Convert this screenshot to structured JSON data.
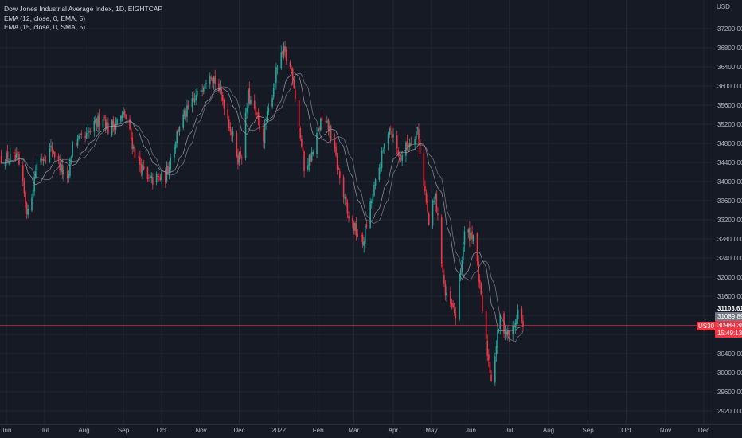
{
  "legend": {
    "title": "Dow Jones Industrial Average Index, 1D, EIGHTCAP",
    "ema1": "EMA (12, close, 0, EMA, 5)",
    "ema2": "EMA (15, close, 0, SMA, 5)"
  },
  "currency": "USD",
  "symbol": "US30",
  "price_badges": {
    "high": "31103.61",
    "mid": "31089.89",
    "last": "30989.38",
    "countdown": "15:49:13"
  },
  "colors": {
    "background": "#161a25",
    "up": "#26a69a",
    "down": "#f23645",
    "grid": "#232733",
    "ma": "#9598a1",
    "price_line": "#f23645"
  },
  "chart_data": {
    "type": "candlestick",
    "x_ticks": [
      "Jun",
      "Jul",
      "Aug",
      "Sep",
      "Oct",
      "Nov",
      "Dec",
      "2022",
      "Feb",
      "Mar",
      "Apr",
      "May",
      "Jun",
      "Jul",
      "Aug",
      "Sep",
      "Oct",
      "Nov",
      "Dec"
    ],
    "y_ticks": [
      37200,
      36800,
      36400,
      36000,
      35600,
      35200,
      34800,
      34400,
      34000,
      33600,
      33200,
      32800,
      32400,
      32000,
      31600,
      31200,
      30800,
      30400,
      30000,
      29600,
      29200
    ],
    "ylim": [
      29050,
      37450
    ],
    "last_price": 30989.38,
    "close_path": [
      {
        "date": "2021-05-28",
        "close": 34500
      },
      {
        "date": "2021-06-10",
        "close": 34450
      },
      {
        "date": "2021-06-18",
        "close": 33300
      },
      {
        "date": "2021-06-25",
        "close": 34400
      },
      {
        "date": "2021-07-07",
        "close": 34700
      },
      {
        "date": "2021-07-19",
        "close": 33950
      },
      {
        "date": "2021-07-23",
        "close": 34800
      },
      {
        "date": "2021-08-02",
        "close": 34900
      },
      {
        "date": "2021-08-16",
        "close": 35400
      },
      {
        "date": "2021-08-20",
        "close": 35100
      },
      {
        "date": "2021-09-02",
        "close": 35400
      },
      {
        "date": "2021-09-10",
        "close": 34600
      },
      {
        "date": "2021-09-20",
        "close": 34000
      },
      {
        "date": "2021-10-04",
        "close": 34100
      },
      {
        "date": "2021-10-15",
        "close": 35200
      },
      {
        "date": "2021-10-29",
        "close": 35800
      },
      {
        "date": "2021-11-08",
        "close": 36350
      },
      {
        "date": "2021-11-19",
        "close": 35650
      },
      {
        "date": "2021-11-30",
        "close": 34500
      },
      {
        "date": "2021-12-03",
        "close": 34600
      },
      {
        "date": "2021-12-08",
        "close": 35800
      },
      {
        "date": "2021-12-20",
        "close": 34950
      },
      {
        "date": "2021-12-31",
        "close": 36400
      },
      {
        "date": "2022-01-05",
        "close": 36700
      },
      {
        "date": "2022-01-12",
        "close": 36250
      },
      {
        "date": "2022-01-21",
        "close": 34300
      },
      {
        "date": "2022-01-28",
        "close": 34600
      },
      {
        "date": "2022-02-03",
        "close": 35250
      },
      {
        "date": "2022-02-10",
        "close": 35100
      },
      {
        "date": "2022-02-24",
        "close": 33300
      },
      {
        "date": "2022-03-08",
        "close": 32700
      },
      {
        "date": "2022-03-15",
        "close": 33600
      },
      {
        "date": "2022-03-29",
        "close": 35200
      },
      {
        "date": "2022-04-06",
        "close": 34500
      },
      {
        "date": "2022-04-20",
        "close": 35100
      },
      {
        "date": "2022-04-29",
        "close": 33100
      },
      {
        "date": "2022-05-04",
        "close": 33700
      },
      {
        "date": "2022-05-12",
        "close": 31600
      },
      {
        "date": "2022-05-20",
        "close": 31200
      },
      {
        "date": "2022-05-27",
        "close": 32900
      },
      {
        "date": "2022-06-03",
        "close": 32900
      },
      {
        "date": "2022-06-13",
        "close": 30600
      },
      {
        "date": "2022-06-17",
        "close": 29900
      },
      {
        "date": "2022-06-24",
        "close": 31100
      },
      {
        "date": "2022-06-30",
        "close": 30800
      },
      {
        "date": "2022-07-05",
        "close": 30950
      },
      {
        "date": "2022-07-08",
        "close": 31300
      },
      {
        "date": "2022-07-12",
        "close": 30989
      }
    ],
    "series": [
      {
        "name": "EMA (12, close, 0, EMA, 5)"
      },
      {
        "name": "EMA (15, close, 0, SMA, 5)"
      }
    ]
  }
}
